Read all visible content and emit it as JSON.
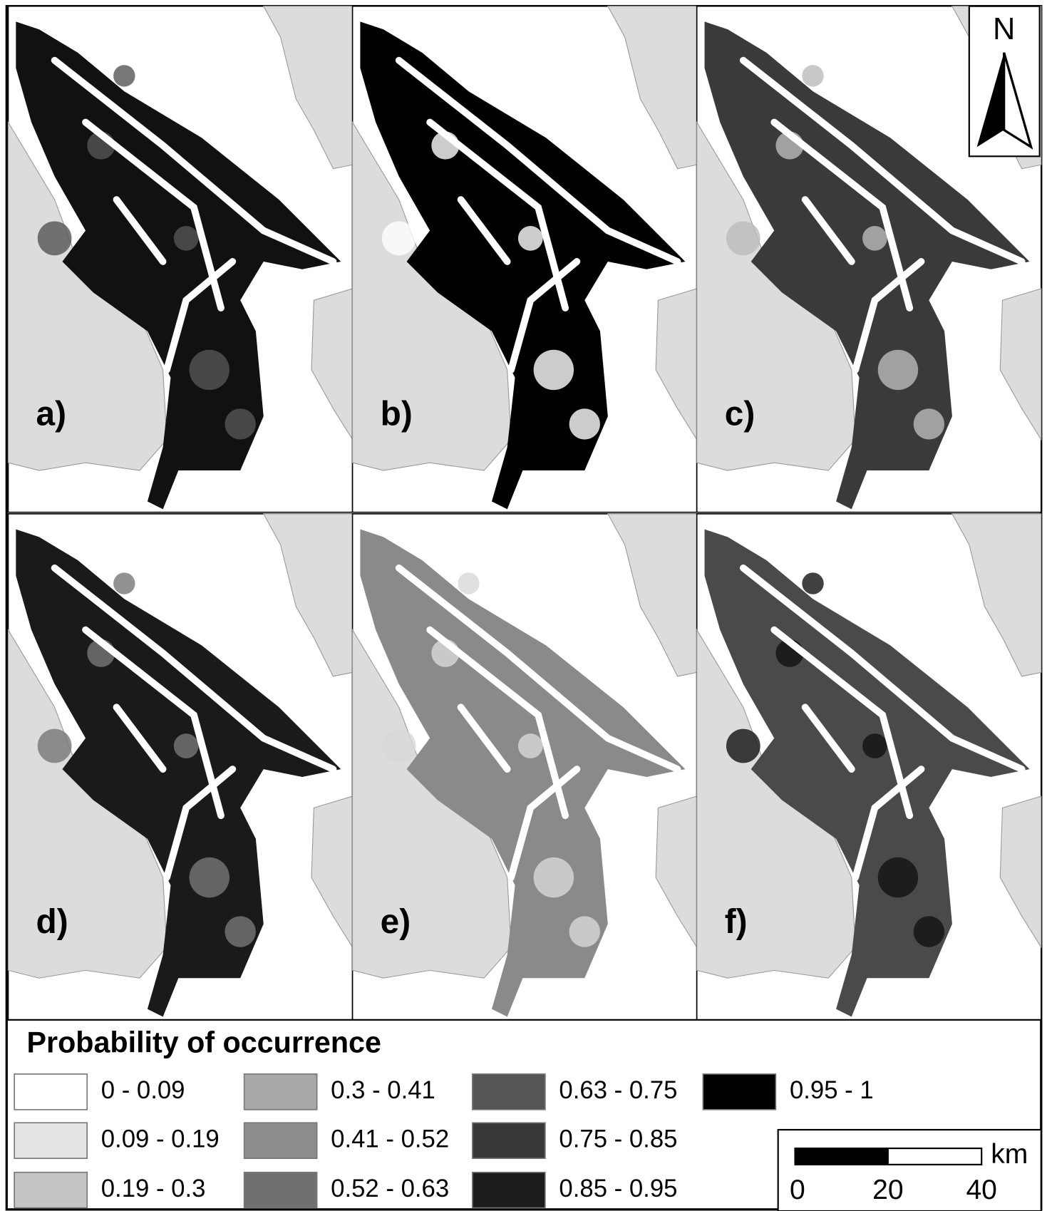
{
  "panels": [
    {
      "label": "a)"
    },
    {
      "label": "b)"
    },
    {
      "label": "c)"
    },
    {
      "label": "d)"
    },
    {
      "label": "e)"
    },
    {
      "label": "f)"
    }
  ],
  "legend": {
    "title": "Probability of occurrence",
    "items": [
      {
        "label": "0 - 0.09",
        "color": "#ffffff"
      },
      {
        "label": "0.09 - 0.19",
        "color": "#e3e3e3"
      },
      {
        "label": "0.19 - 0.3",
        "color": "#c4c4c4"
      },
      {
        "label": "0.3 - 0.41",
        "color": "#a8a8a8"
      },
      {
        "label": "0.41 - 0.52",
        "color": "#8c8c8c"
      },
      {
        "label": "0.52 - 0.63",
        "color": "#707070"
      },
      {
        "label": "0.63 - 0.75",
        "color": "#555555"
      },
      {
        "label": "0.75 - 0.85",
        "color": "#383838"
      },
      {
        "label": "0.85 - 0.95",
        "color": "#1c1c1c"
      },
      {
        "label": "0.95 - 1",
        "color": "#000000"
      }
    ]
  },
  "north_arrow": {
    "label": "N"
  },
  "scale_bar": {
    "unit": "km",
    "ticks": [
      0,
      20,
      40
    ]
  }
}
